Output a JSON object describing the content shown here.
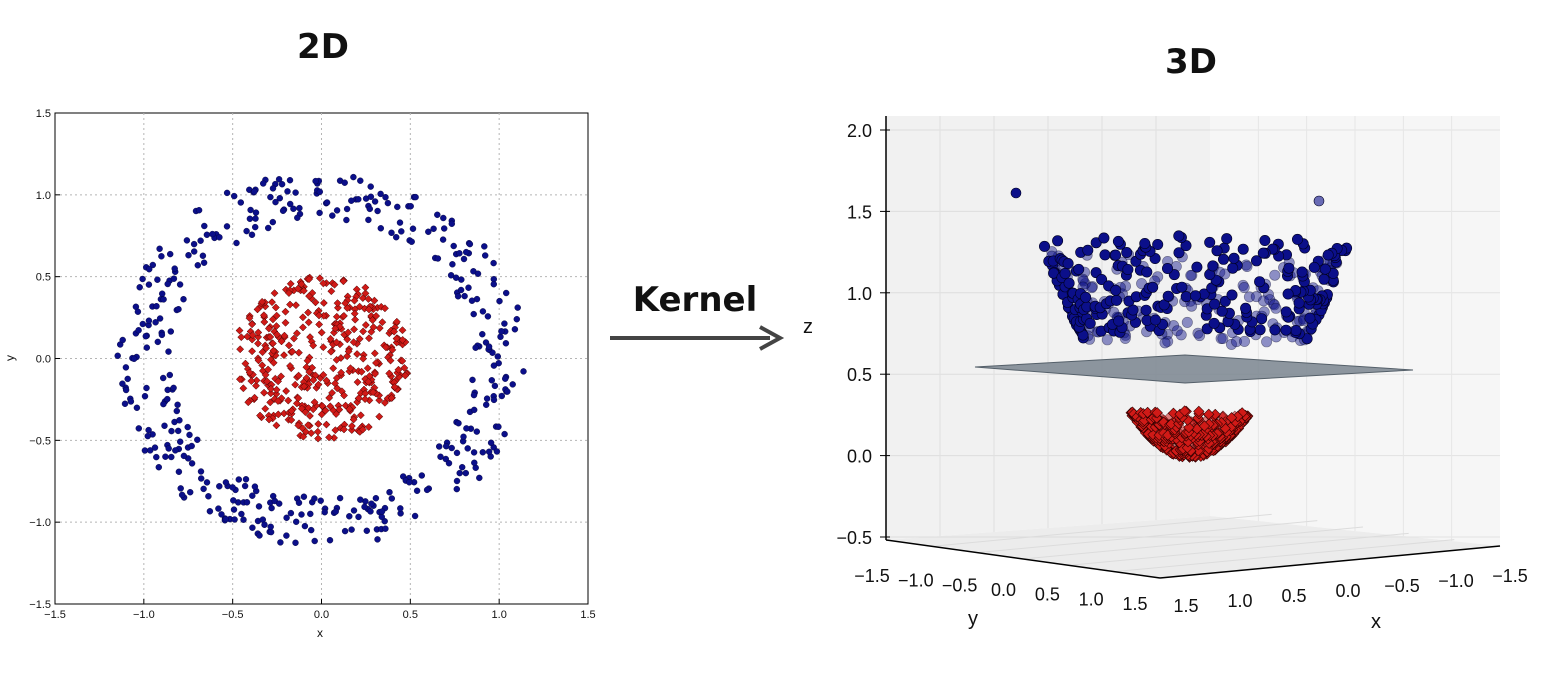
{
  "heading_left": "2D",
  "heading_right": "3D",
  "arrow_label": "Kernel",
  "colors": {
    "outer_class": "#0b0f8a",
    "inner_class": "#d01a17",
    "plane": "#6b7680",
    "arrow": "#444444"
  },
  "chart_data": [
    {
      "type": "scatter",
      "title": "2D",
      "xlabel": "x",
      "ylabel": "y",
      "xlim": [
        -1.5,
        1.5
      ],
      "ylim": [
        -1.5,
        1.5
      ],
      "xticks": [
        "-1.5",
        "-1.0",
        "-0.5",
        "0.0",
        "0.5",
        "1.0",
        "1.5"
      ],
      "yticks": [
        "1.5",
        "1.0",
        "0.5",
        "0.0",
        "-0.5",
        "-1.0",
        "-1.5"
      ],
      "grid": true,
      "series": [
        {
          "marker": "circle",
          "color": "#0b0f8a",
          "radius_range": [
            0.85,
            1.15
          ],
          "n_points": 420
        },
        {
          "marker": "diamond",
          "color": "#d01a17",
          "radius_range": [
            0.05,
            0.5
          ],
          "n_points": 420
        }
      ]
    },
    {
      "type": "scatter3d",
      "title": "3D",
      "xlabel": "x",
      "ylabel": "y",
      "zlabel": "z",
      "zticks": [
        "2.0",
        "1.5",
        "1.0",
        "0.5",
        "0.0",
        "-0.5"
      ],
      "yticks": [
        "-1.5",
        "-1.0",
        "-0.5",
        "0.0",
        "0.5",
        "1.0",
        "1.5"
      ],
      "xticks": [
        "1.5",
        "1.0",
        "0.5",
        "0.0",
        "-0.5",
        "-1.0",
        "-1.5"
      ],
      "separating_plane_z": 0.5,
      "z_formula": "x^2 + y^2",
      "series": [
        {
          "marker": "circle",
          "color": "#0b0f8a",
          "z_range": [
            0.72,
            1.32
          ],
          "n_points": 420
        },
        {
          "marker": "diamond",
          "color": "#d01a17",
          "z_range": [
            0.0,
            0.25
          ],
          "n_points": 420
        }
      ]
    }
  ]
}
